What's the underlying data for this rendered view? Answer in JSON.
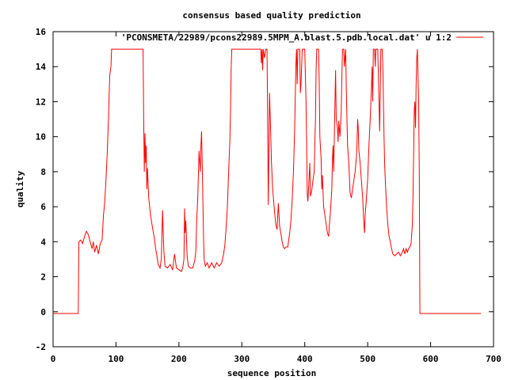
{
  "chart_data": {
    "type": "line",
    "title": "consensus based quality prediction",
    "xlabel": "sequence position",
    "ylabel": "quality",
    "xlim": [
      0,
      700
    ],
    "ylim": [
      -2,
      16
    ],
    "x_ticks": [
      0,
      100,
      200,
      300,
      400,
      500,
      600,
      700
    ],
    "y_ticks": [
      -2,
      0,
      2,
      4,
      6,
      8,
      10,
      12,
      14,
      16
    ],
    "grid": false,
    "legend_position": "top-right",
    "series": [
      {
        "name": "'PCONSMETA/22989/pcons22989.5MPM_A.blast.5.pdb.local.dat' u 1:2",
        "color": "#ff0000",
        "points": [
          [
            0,
            -0.1
          ],
          [
            40,
            -0.1
          ],
          [
            41,
            4.0
          ],
          [
            44,
            4.1
          ],
          [
            47,
            3.9
          ],
          [
            50,
            4.3
          ],
          [
            53,
            4.6
          ],
          [
            56,
            4.4
          ],
          [
            59,
            4.0
          ],
          [
            62,
            3.6
          ],
          [
            64,
            4.0
          ],
          [
            66,
            3.4
          ],
          [
            69,
            3.8
          ],
          [
            72,
            3.3
          ],
          [
            75,
            3.9
          ],
          [
            78,
            4.1
          ],
          [
            80,
            5.5
          ],
          [
            82,
            6.2
          ],
          [
            84,
            7.5
          ],
          [
            86,
            9.0
          ],
          [
            88,
            11.0
          ],
          [
            90,
            13.5
          ],
          [
            92,
            14.0
          ],
          [
            93,
            15.0
          ],
          [
            143,
            15.0
          ],
          [
            144,
            11.0
          ],
          [
            145,
            8.0
          ],
          [
            146,
            10.2
          ],
          [
            147,
            8.5
          ],
          [
            148,
            9.5
          ],
          [
            149,
            7.0
          ],
          [
            150,
            8.2
          ],
          [
            152,
            6.5
          ],
          [
            155,
            5.5
          ],
          [
            158,
            4.8
          ],
          [
            161,
            4.2
          ],
          [
            163,
            3.6
          ],
          [
            165,
            3.2
          ],
          [
            167,
            2.7
          ],
          [
            170,
            2.5
          ],
          [
            172,
            3.0
          ],
          [
            174,
            5.8
          ],
          [
            176,
            3.5
          ],
          [
            178,
            2.6
          ],
          [
            182,
            2.5
          ],
          [
            186,
            2.7
          ],
          [
            190,
            2.4
          ],
          [
            193,
            3.3
          ],
          [
            196,
            2.5
          ],
          [
            200,
            2.4
          ],
          [
            204,
            2.3
          ],
          [
            206,
            2.5
          ],
          [
            208,
            3.0
          ],
          [
            209,
            5.9
          ],
          [
            210,
            4.5
          ],
          [
            211,
            5.2
          ],
          [
            213,
            3.2
          ],
          [
            215,
            2.6
          ],
          [
            218,
            2.5
          ],
          [
            222,
            2.5
          ],
          [
            225,
            2.9
          ],
          [
            227,
            3.5
          ],
          [
            228,
            5.0
          ],
          [
            230,
            6.6
          ],
          [
            232,
            9.2
          ],
          [
            234,
            8.0
          ],
          [
            235,
            9.5
          ],
          [
            236,
            10.3
          ],
          [
            237,
            8.5
          ],
          [
            239,
            4.5
          ],
          [
            240,
            3.0
          ],
          [
            242,
            2.6
          ],
          [
            245,
            2.8
          ],
          [
            248,
            2.5
          ],
          [
            252,
            2.8
          ],
          [
            256,
            2.5
          ],
          [
            260,
            2.8
          ],
          [
            264,
            2.6
          ],
          [
            268,
            2.8
          ],
          [
            271,
            3.3
          ],
          [
            273,
            3.8
          ],
          [
            275,
            4.8
          ],
          [
            277,
            6.0
          ],
          [
            279,
            8.0
          ],
          [
            281,
            9.8
          ],
          [
            282,
            11.5
          ],
          [
            283,
            13.8
          ],
          [
            284,
            15.0
          ],
          [
            330,
            15.0
          ],
          [
            331,
            14.2
          ],
          [
            332,
            15.0
          ],
          [
            333,
            13.8
          ],
          [
            334,
            15.0
          ],
          [
            336,
            14.5
          ],
          [
            338,
            15.0
          ],
          [
            340,
            15.0
          ],
          [
            341,
            11.0
          ],
          [
            342,
            6.1
          ],
          [
            343,
            9.0
          ],
          [
            344,
            12.5
          ],
          [
            346,
            10.0
          ],
          [
            347,
            8.6
          ],
          [
            349,
            7.0
          ],
          [
            352,
            5.7
          ],
          [
            354,
            5.0
          ],
          [
            356,
            4.7
          ],
          [
            358,
            6.2
          ],
          [
            360,
            4.9
          ],
          [
            362,
            4.5
          ],
          [
            364,
            4.0
          ],
          [
            366,
            3.7
          ],
          [
            368,
            3.6
          ],
          [
            370,
            3.7
          ],
          [
            373,
            3.7
          ],
          [
            376,
            4.5
          ],
          [
            378,
            5.2
          ],
          [
            380,
            6.4
          ],
          [
            382,
            8.0
          ],
          [
            384,
            10.5
          ],
          [
            385,
            12.5
          ],
          [
            386,
            14.2
          ],
          [
            387,
            15.0
          ],
          [
            388,
            13.0
          ],
          [
            389,
            15.0
          ],
          [
            392,
            15.0
          ],
          [
            393,
            12.5
          ],
          [
            394,
            13.0
          ],
          [
            396,
            15.0
          ],
          [
            400,
            15.0
          ],
          [
            402,
            12.0
          ],
          [
            403,
            9.5
          ],
          [
            404,
            6.7
          ],
          [
            405,
            6.3
          ],
          [
            406,
            7.0
          ],
          [
            408,
            8.5
          ],
          [
            409,
            6.6
          ],
          [
            411,
            6.9
          ],
          [
            413,
            7.5
          ],
          [
            415,
            8.0
          ],
          [
            417,
            11.0
          ],
          [
            418,
            13.8
          ],
          [
            419,
            15.0
          ],
          [
            422,
            15.0
          ],
          [
            423,
            13.0
          ],
          [
            424,
            10.0
          ],
          [
            426,
            8.7
          ],
          [
            427,
            7.0
          ],
          [
            428,
            7.8
          ],
          [
            430,
            6.0
          ],
          [
            432,
            5.5
          ],
          [
            434,
            5.0
          ],
          [
            436,
            4.5
          ],
          [
            438,
            4.3
          ],
          [
            439,
            4.9
          ],
          [
            441,
            5.8
          ],
          [
            443,
            7.0
          ],
          [
            444,
            8.7
          ],
          [
            445,
            9.5
          ],
          [
            446,
            8.0
          ],
          [
            447,
            10.0
          ],
          [
            448,
            12.0
          ],
          [
            449,
            13.8
          ],
          [
            450,
            11.0
          ],
          [
            452,
            10.5
          ],
          [
            453,
            9.7
          ],
          [
            454,
            10.9
          ],
          [
            456,
            10.0
          ],
          [
            458,
            11.5
          ],
          [
            459,
            13.5
          ],
          [
            460,
            15.0
          ],
          [
            462,
            15.0
          ],
          [
            463,
            14.0
          ],
          [
            465,
            15.0
          ],
          [
            466,
            12.8
          ],
          [
            468,
            9.5
          ],
          [
            470,
            8.5
          ],
          [
            472,
            6.8
          ],
          [
            474,
            6.5
          ],
          [
            476,
            7.0
          ],
          [
            478,
            7.5
          ],
          [
            480,
            8.0
          ],
          [
            482,
            8.8
          ],
          [
            483,
            9.5
          ],
          [
            484,
            11.0
          ],
          [
            485,
            10.5
          ],
          [
            486,
            9.2
          ],
          [
            488,
            8.5
          ],
          [
            490,
            7.5
          ],
          [
            492,
            6.5
          ],
          [
            494,
            5.0
          ],
          [
            495,
            4.5
          ],
          [
            496,
            5.5
          ],
          [
            498,
            6.5
          ],
          [
            500,
            7.6
          ],
          [
            502,
            9.5
          ],
          [
            504,
            11.0
          ],
          [
            506,
            12.8
          ],
          [
            507,
            14.0
          ],
          [
            508,
            12.0
          ],
          [
            509,
            15.0
          ],
          [
            511,
            15.0
          ],
          [
            512,
            14.0
          ],
          [
            513,
            15.0
          ],
          [
            516,
            15.0
          ],
          [
            517,
            13.5
          ],
          [
            518,
            12.0
          ],
          [
            519,
            10.3
          ],
          [
            520,
            12.5
          ],
          [
            521,
            15.0
          ],
          [
            523,
            15.0
          ],
          [
            524,
            14.2
          ],
          [
            526,
            10.0
          ],
          [
            527,
            8.4
          ],
          [
            528,
            7.5
          ],
          [
            530,
            6.0
          ],
          [
            532,
            5.0
          ],
          [
            534,
            4.3
          ],
          [
            536,
            4.0
          ],
          [
            538,
            3.6
          ],
          [
            540,
            3.3
          ],
          [
            543,
            3.2
          ],
          [
            546,
            3.3
          ],
          [
            549,
            3.4
          ],
          [
            552,
            3.2
          ],
          [
            555,
            3.4
          ],
          [
            557,
            3.6
          ],
          [
            559,
            3.3
          ],
          [
            561,
            3.6
          ],
          [
            563,
            3.4
          ],
          [
            565,
            3.6
          ],
          [
            567,
            3.7
          ],
          [
            569,
            3.9
          ],
          [
            571,
            5.0
          ],
          [
            572,
            6.5
          ],
          [
            573,
            9.0
          ],
          [
            574,
            11.5
          ],
          [
            575,
            12.0
          ],
          [
            576,
            10.5
          ],
          [
            577,
            13.0
          ],
          [
            578,
            14.5
          ],
          [
            579,
            15.0
          ],
          [
            580,
            13.5
          ],
          [
            581,
            12.0
          ],
          [
            582,
            8.0
          ],
          [
            583,
            -0.1
          ],
          [
            680,
            -0.1
          ]
        ]
      }
    ]
  }
}
